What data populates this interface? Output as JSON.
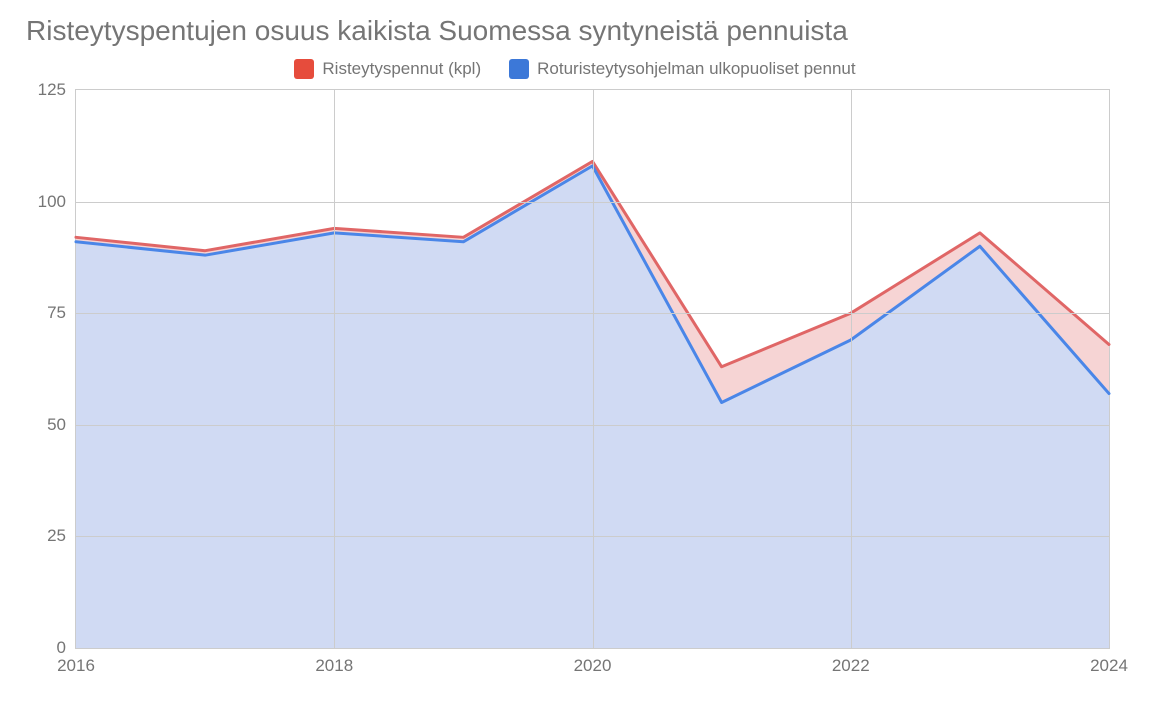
{
  "chart": {
    "type": "area",
    "title": "Risteytyspentujen osuus kaikista Suomessa syntyneistä pennuista",
    "title_fontsize": 28,
    "title_color": "#757575",
    "background_color": "#ffffff",
    "grid_color": "#cccccc",
    "axis_label_color": "#757575",
    "axis_label_fontsize": 17,
    "x": {
      "min": 2016,
      "max": 2024,
      "tick_step": 2,
      "ticks": [
        2016,
        2018,
        2020,
        2022,
        2024
      ]
    },
    "y": {
      "min": 0,
      "max": 125,
      "tick_step": 25,
      "ticks": [
        0,
        25,
        50,
        75,
        100,
        125
      ]
    },
    "series": [
      {
        "key": "risteytyspennut",
        "label": "Risteytyspennut (kpl)",
        "line_color": "#e06666",
        "fill_color": "#f4cccc",
        "fill_opacity": 0.85,
        "line_width": 3,
        "swatch_color": "#e64c3c",
        "x": [
          2016,
          2017,
          2018,
          2019,
          2020,
          2021,
          2022,
          2023,
          2024
        ],
        "y": [
          92,
          89,
          94,
          92,
          109,
          63,
          75,
          93,
          68
        ]
      },
      {
        "key": "roturisteytysohjelman_ulkopuoliset",
        "label": "Roturisteytysohjelman ulkopuoliset pennut",
        "line_color": "#4a86e8",
        "fill_color": "#c9daf8",
        "fill_opacity": 0.85,
        "line_width": 3,
        "swatch_color": "#3c78d8",
        "x": [
          2016,
          2017,
          2018,
          2019,
          2020,
          2021,
          2022,
          2023,
          2024
        ],
        "y": [
          91,
          88,
          93,
          91,
          108,
          55,
          69,
          90,
          57
        ]
      }
    ],
    "legend": {
      "position": "top-center",
      "fontsize": 17,
      "text_color": "#757575"
    }
  }
}
